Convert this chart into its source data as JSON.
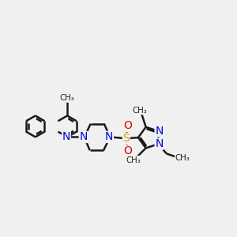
{
  "background_color": "#f0f0f0",
  "bond_color": "#1a1a1a",
  "bond_width": 1.8,
  "atom_colors": {
    "N": "#0000ee",
    "O": "#dd0000",
    "S": "#ccaa00",
    "C": "#1a1a1a"
  },
  "font_size": 8.5,
  "fig_width": 3.0,
  "fig_height": 3.0,
  "dpi": 100,
  "xlim": [
    0.0,
    10.5
  ],
  "ylim": [
    2.5,
    8.5
  ]
}
